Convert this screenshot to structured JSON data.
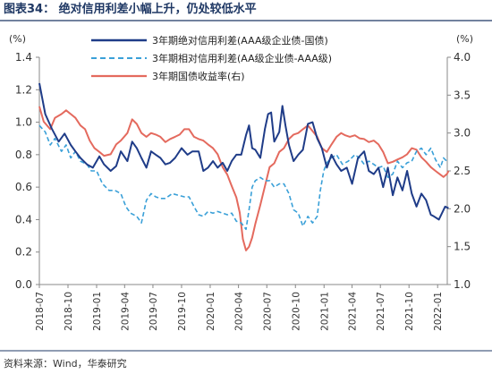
{
  "title": "图表34：  绝对信用利差小幅上升，仍处较低水平",
  "source": "资料来源：Wind，华泰研究",
  "chart_data": {
    "type": "line",
    "left_unit": "(%)",
    "right_unit": "(%)",
    "y_left": {
      "min": 0.0,
      "max": 1.4,
      "step": 0.2,
      "ticks": [
        "0.0",
        "0.2",
        "0.4",
        "0.6",
        "0.8",
        "1.0",
        "1.2",
        "1.4"
      ]
    },
    "y_right": {
      "min": 1.0,
      "max": 4.0,
      "step": 0.5,
      "ticks": [
        "1.0",
        "1.5",
        "2.0",
        "2.5",
        "3.0",
        "3.5",
        "4.0"
      ]
    },
    "x_range": [
      "2018-07",
      "2022-02"
    ],
    "x_ticks": [
      "2018-07",
      "2018-10",
      "2019-01",
      "2019-04",
      "2019-07",
      "2019-10",
      "2020-01",
      "2020-04",
      "2020-07",
      "2020-10",
      "2021-01",
      "2021-04",
      "2021-07",
      "2021-10",
      "2022-01"
    ],
    "legend_position": "top-right",
    "colors": {
      "abs_spread": "#1f3c88",
      "rel_spread": "#3aa0d8",
      "yield": "#e46a5e"
    },
    "series": [
      {
        "name": "3年期绝对信用利差(AAA级企业债-国债)",
        "axis": "left",
        "style": "solid",
        "color": "#1f3c88",
        "points": [
          [
            "2018-07-01",
            1.24
          ],
          [
            "2018-07-20",
            1.05
          ],
          [
            "2018-08-10",
            0.96
          ],
          [
            "2018-09-01",
            0.88
          ],
          [
            "2018-09-20",
            0.93
          ],
          [
            "2018-10-10",
            0.86
          ],
          [
            "2018-10-25",
            0.82
          ],
          [
            "2018-11-10",
            0.78
          ],
          [
            "2018-12-01",
            0.74
          ],
          [
            "2018-12-20",
            0.72
          ],
          [
            "2019-01-10",
            0.79
          ],
          [
            "2019-01-25",
            0.74
          ],
          [
            "2019-02-15",
            0.7
          ],
          [
            "2019-03-05",
            0.73
          ],
          [
            "2019-03-20",
            0.82
          ],
          [
            "2019-04-10",
            0.76
          ],
          [
            "2019-04-25",
            0.88
          ],
          [
            "2019-05-10",
            0.84
          ],
          [
            "2019-05-25",
            0.78
          ],
          [
            "2019-06-10",
            0.72
          ],
          [
            "2019-06-25",
            0.82
          ],
          [
            "2019-07-10",
            0.8
          ],
          [
            "2019-07-25",
            0.78
          ],
          [
            "2019-08-10",
            0.74
          ],
          [
            "2019-08-25",
            0.75
          ],
          [
            "2019-09-10",
            0.78
          ],
          [
            "2019-10-01",
            0.84
          ],
          [
            "2019-10-20",
            0.8
          ],
          [
            "2019-11-05",
            0.82
          ],
          [
            "2019-11-25",
            0.82
          ],
          [
            "2019-12-10",
            0.7
          ],
          [
            "2019-12-25",
            0.72
          ],
          [
            "2020-01-10",
            0.76
          ],
          [
            "2020-01-25",
            0.72
          ],
          [
            "2020-02-10",
            0.75
          ],
          [
            "2020-02-25",
            0.7
          ],
          [
            "2020-03-10",
            0.76
          ],
          [
            "2020-03-25",
            0.8
          ],
          [
            "2020-04-10",
            0.8
          ],
          [
            "2020-04-25",
            0.92
          ],
          [
            "2020-05-05",
            0.98
          ],
          [
            "2020-05-15",
            0.84
          ],
          [
            "2020-05-25",
            0.83
          ],
          [
            "2020-06-10",
            0.78
          ],
          [
            "2020-06-25",
            0.96
          ],
          [
            "2020-07-05",
            1.05
          ],
          [
            "2020-07-15",
            1.06
          ],
          [
            "2020-07-25",
            0.88
          ],
          [
            "2020-08-10",
            0.94
          ],
          [
            "2020-08-20",
            1.1
          ],
          [
            "2020-08-30",
            0.98
          ],
          [
            "2020-09-10",
            0.86
          ],
          [
            "2020-09-25",
            0.76
          ],
          [
            "2020-10-10",
            0.8
          ],
          [
            "2020-10-25",
            0.83
          ],
          [
            "2020-11-10",
            0.99
          ],
          [
            "2020-11-25",
            1.0
          ],
          [
            "2020-12-10",
            0.9
          ],
          [
            "2020-12-25",
            0.84
          ],
          [
            "2021-01-10",
            0.72
          ],
          [
            "2021-01-25",
            0.8
          ],
          [
            "2021-02-10",
            0.74
          ],
          [
            "2021-02-25",
            0.7
          ],
          [
            "2021-03-15",
            0.72
          ],
          [
            "2021-04-01",
            0.62
          ],
          [
            "2021-04-20",
            0.78
          ],
          [
            "2021-05-10",
            0.82
          ],
          [
            "2021-05-25",
            0.7
          ],
          [
            "2021-06-10",
            0.68
          ],
          [
            "2021-06-25",
            0.72
          ],
          [
            "2021-07-10",
            0.6
          ],
          [
            "2021-07-25",
            0.72
          ],
          [
            "2021-08-10",
            0.55
          ],
          [
            "2021-08-25",
            0.66
          ],
          [
            "2021-09-10",
            0.58
          ],
          [
            "2021-09-25",
            0.7
          ],
          [
            "2021-10-10",
            0.56
          ],
          [
            "2021-10-25",
            0.48
          ],
          [
            "2021-11-10",
            0.56
          ],
          [
            "2021-11-25",
            0.52
          ],
          [
            "2021-12-10",
            0.43
          ],
          [
            "2021-12-20",
            0.42
          ],
          [
            "2022-01-05",
            0.4
          ],
          [
            "2022-01-15",
            0.44
          ],
          [
            "2022-01-25",
            0.48
          ],
          [
            "2022-02-05",
            0.47
          ]
        ]
      },
      {
        "name": "3年期相对信用利差(AA级企业债-AAA级)",
        "axis": "left",
        "style": "dashed",
        "color": "#3aa0d8",
        "points": [
          [
            "2018-07-01",
            0.98
          ],
          [
            "2018-07-20",
            0.94
          ],
          [
            "2018-08-05",
            0.86
          ],
          [
            "2018-08-20",
            0.9
          ],
          [
            "2018-09-10",
            0.82
          ],
          [
            "2018-09-25",
            0.86
          ],
          [
            "2018-10-10",
            0.78
          ],
          [
            "2018-10-25",
            0.82
          ],
          [
            "2018-11-10",
            0.76
          ],
          [
            "2018-12-01",
            0.74
          ],
          [
            "2018-12-15",
            0.7
          ],
          [
            "2019-01-01",
            0.7
          ],
          [
            "2019-01-20",
            0.62
          ],
          [
            "2019-02-10",
            0.58
          ],
          [
            "2019-03-01",
            0.58
          ],
          [
            "2019-03-20",
            0.56
          ],
          [
            "2019-04-05",
            0.48
          ],
          [
            "2019-04-20",
            0.44
          ],
          [
            "2019-05-10",
            0.42
          ],
          [
            "2019-05-25",
            0.38
          ],
          [
            "2019-06-10",
            0.52
          ],
          [
            "2019-06-25",
            0.56
          ],
          [
            "2019-07-10",
            0.54
          ],
          [
            "2019-07-25",
            0.53
          ],
          [
            "2019-08-10",
            0.53
          ],
          [
            "2019-09-01",
            0.56
          ],
          [
            "2019-09-20",
            0.55
          ],
          [
            "2019-10-10",
            0.54
          ],
          [
            "2019-10-25",
            0.54
          ],
          [
            "2019-11-10",
            0.48
          ],
          [
            "2019-11-25",
            0.43
          ],
          [
            "2019-12-10",
            0.42
          ],
          [
            "2019-12-25",
            0.45
          ],
          [
            "2020-01-10",
            0.44
          ],
          [
            "2020-01-25",
            0.45
          ],
          [
            "2020-02-10",
            0.44
          ],
          [
            "2020-02-25",
            0.43
          ],
          [
            "2020-03-10",
            0.44
          ],
          [
            "2020-03-25",
            0.39
          ],
          [
            "2020-04-10",
            0.38
          ],
          [
            "2020-04-25",
            0.34
          ],
          [
            "2020-05-05",
            0.46
          ],
          [
            "2020-05-15",
            0.6
          ],
          [
            "2020-05-25",
            0.64
          ],
          [
            "2020-06-10",
            0.66
          ],
          [
            "2020-06-25",
            0.64
          ],
          [
            "2020-07-10",
            0.64
          ],
          [
            "2020-07-25",
            0.6
          ],
          [
            "2020-08-10",
            0.62
          ],
          [
            "2020-08-25",
            0.62
          ],
          [
            "2020-09-10",
            0.56
          ],
          [
            "2020-09-25",
            0.46
          ],
          [
            "2020-10-10",
            0.44
          ],
          [
            "2020-10-25",
            0.36
          ],
          [
            "2020-11-10",
            0.42
          ],
          [
            "2020-11-25",
            0.38
          ],
          [
            "2020-12-10",
            0.42
          ],
          [
            "2020-12-20",
            0.58
          ],
          [
            "2020-12-31",
            0.7
          ],
          [
            "2021-01-10",
            0.75
          ],
          [
            "2021-01-25",
            0.78
          ],
          [
            "2021-02-10",
            0.8
          ],
          [
            "2021-03-01",
            0.74
          ],
          [
            "2021-03-20",
            0.76
          ],
          [
            "2021-04-10",
            0.8
          ],
          [
            "2021-04-25",
            0.78
          ],
          [
            "2021-05-10",
            0.74
          ],
          [
            "2021-05-25",
            0.76
          ],
          [
            "2021-06-10",
            0.74
          ],
          [
            "2021-06-25",
            0.72
          ],
          [
            "2021-07-10",
            0.73
          ],
          [
            "2021-07-25",
            0.66
          ],
          [
            "2021-08-10",
            0.68
          ],
          [
            "2021-08-25",
            0.76
          ],
          [
            "2021-09-10",
            0.72
          ],
          [
            "2021-09-25",
            0.75
          ],
          [
            "2021-10-10",
            0.76
          ],
          [
            "2021-10-25",
            0.82
          ],
          [
            "2021-11-10",
            0.84
          ],
          [
            "2021-11-25",
            0.8
          ],
          [
            "2021-12-10",
            0.84
          ],
          [
            "2021-12-25",
            0.77
          ],
          [
            "2022-01-10",
            0.72
          ],
          [
            "2022-01-20",
            0.78
          ],
          [
            "2022-01-30",
            0.76
          ],
          [
            "2022-02-05",
            0.76
          ]
        ]
      },
      {
        "name": "3年期国债收益率(右)",
        "axis": "right",
        "style": "solid",
        "color": "#e46a5e",
        "points": [
          [
            "2018-07-01",
            3.35
          ],
          [
            "2018-07-15",
            3.15
          ],
          [
            "2018-08-05",
            3.05
          ],
          [
            "2018-08-20",
            3.2
          ],
          [
            "2018-09-10",
            3.25
          ],
          [
            "2018-09-25",
            3.3
          ],
          [
            "2018-10-10",
            3.25
          ],
          [
            "2018-10-25",
            3.2
          ],
          [
            "2018-11-10",
            3.1
          ],
          [
            "2018-11-25",
            3.05
          ],
          [
            "2018-12-10",
            2.9
          ],
          [
            "2018-12-25",
            2.8
          ],
          [
            "2019-01-10",
            2.75
          ],
          [
            "2019-01-25",
            2.7
          ],
          [
            "2019-02-15",
            2.72
          ],
          [
            "2019-03-05",
            2.85
          ],
          [
            "2019-03-20",
            2.9
          ],
          [
            "2019-04-10",
            3.0
          ],
          [
            "2019-04-25",
            3.18
          ],
          [
            "2019-05-10",
            3.12
          ],
          [
            "2019-05-25",
            3.0
          ],
          [
            "2019-06-10",
            2.95
          ],
          [
            "2019-06-25",
            3.0
          ],
          [
            "2019-07-10",
            2.98
          ],
          [
            "2019-07-25",
            2.95
          ],
          [
            "2019-08-10",
            2.88
          ],
          [
            "2019-08-25",
            2.92
          ],
          [
            "2019-09-10",
            2.95
          ],
          [
            "2019-09-25",
            2.98
          ],
          [
            "2019-10-10",
            3.05
          ],
          [
            "2019-10-25",
            3.05
          ],
          [
            "2019-11-10",
            2.95
          ],
          [
            "2019-11-25",
            2.92
          ],
          [
            "2019-12-10",
            2.9
          ],
          [
            "2019-12-25",
            2.85
          ],
          [
            "2020-01-10",
            2.8
          ],
          [
            "2020-01-25",
            2.72
          ],
          [
            "2020-02-10",
            2.55
          ],
          [
            "2020-02-25",
            2.45
          ],
          [
            "2020-03-10",
            2.3
          ],
          [
            "2020-03-25",
            2.15
          ],
          [
            "2020-04-05",
            1.95
          ],
          [
            "2020-04-15",
            1.6
          ],
          [
            "2020-04-25",
            1.45
          ],
          [
            "2020-05-05",
            1.5
          ],
          [
            "2020-05-15",
            1.62
          ],
          [
            "2020-05-25",
            1.8
          ],
          [
            "2020-06-10",
            2.05
          ],
          [
            "2020-06-25",
            2.3
          ],
          [
            "2020-07-10",
            2.55
          ],
          [
            "2020-07-25",
            2.6
          ],
          [
            "2020-08-10",
            2.75
          ],
          [
            "2020-08-25",
            2.8
          ],
          [
            "2020-09-10",
            2.92
          ],
          [
            "2020-09-25",
            2.98
          ],
          [
            "2020-10-10",
            3.0
          ],
          [
            "2020-10-25",
            3.05
          ],
          [
            "2020-11-10",
            3.1
          ],
          [
            "2020-11-20",
            3.05
          ],
          [
            "2020-12-10",
            2.95
          ],
          [
            "2020-12-25",
            2.8
          ],
          [
            "2021-01-10",
            2.75
          ],
          [
            "2021-01-25",
            2.85
          ],
          [
            "2021-02-10",
            2.95
          ],
          [
            "2021-02-25",
            3.0
          ],
          [
            "2021-03-10",
            2.97
          ],
          [
            "2021-03-25",
            2.95
          ],
          [
            "2021-04-10",
            2.97
          ],
          [
            "2021-04-25",
            2.93
          ],
          [
            "2021-05-10",
            2.92
          ],
          [
            "2021-05-25",
            2.88
          ],
          [
            "2021-06-10",
            2.9
          ],
          [
            "2021-06-25",
            2.85
          ],
          [
            "2021-07-10",
            2.75
          ],
          [
            "2021-07-25",
            2.6
          ],
          [
            "2021-08-10",
            2.62
          ],
          [
            "2021-08-25",
            2.65
          ],
          [
            "2021-09-10",
            2.68
          ],
          [
            "2021-09-25",
            2.72
          ],
          [
            "2021-10-10",
            2.8
          ],
          [
            "2021-10-25",
            2.78
          ],
          [
            "2021-11-10",
            2.68
          ],
          [
            "2021-11-25",
            2.62
          ],
          [
            "2021-12-10",
            2.55
          ],
          [
            "2021-12-25",
            2.5
          ],
          [
            "2022-01-10",
            2.45
          ],
          [
            "2022-01-20",
            2.42
          ],
          [
            "2022-01-31",
            2.46
          ],
          [
            "2022-02-05",
            2.5
          ]
        ]
      }
    ]
  }
}
